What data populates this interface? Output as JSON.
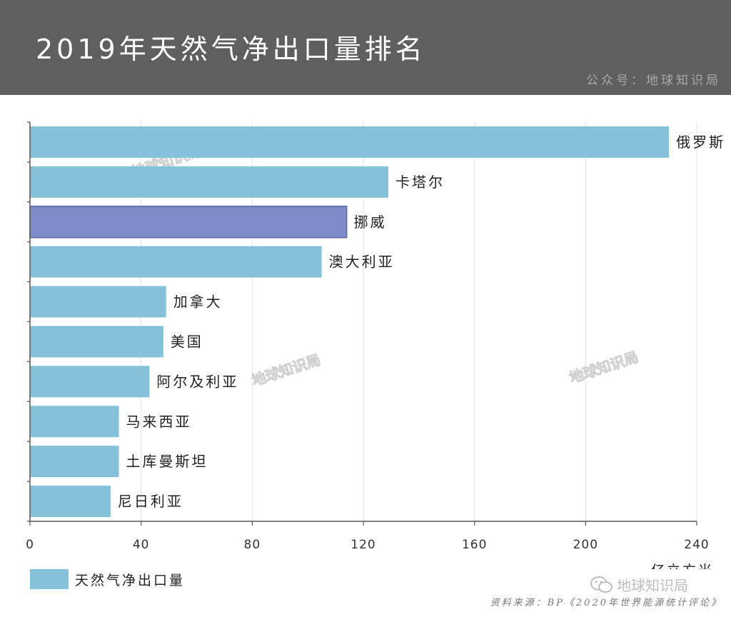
{
  "header": {
    "title": "2019年天然气净出口量排名",
    "credit": "公众号：地球知识局"
  },
  "watermark": {
    "text": "地球知识局",
    "brand": "地球知识局",
    "brand_icon": "wechat-icon"
  },
  "legend": {
    "label": "天然气净出口量",
    "color": "#85c1d9"
  },
  "source": "资料来源：BP《2020年世界能源统计评论》",
  "chart_data": {
    "type": "bar",
    "orientation": "horizontal",
    "title": "2019年天然气净出口量排名",
    "xlabel": "亿立方米",
    "ylabel": "",
    "xlim": [
      0,
      240
    ],
    "x_ticks": [
      0,
      40,
      80,
      120,
      160,
      200,
      240
    ],
    "categories": [
      "俄罗斯",
      "卡塔尔",
      "挪威",
      "澳大利亚",
      "加拿大",
      "美国",
      "阿尔及利亚",
      "马来西亚",
      "土库曼斯坦",
      "尼日利亚"
    ],
    "series": [
      {
        "name": "天然气净出口量",
        "values": [
          230,
          129,
          114,
          105,
          49,
          48,
          43,
          32,
          32,
          29
        ]
      }
    ],
    "colors": {
      "default": "#85c1d9",
      "highlight": "#7f8cc9",
      "highlight_border": "#5a66a8"
    },
    "highlight_index": 2,
    "grid": true,
    "legend_position": "bottom-left"
  }
}
